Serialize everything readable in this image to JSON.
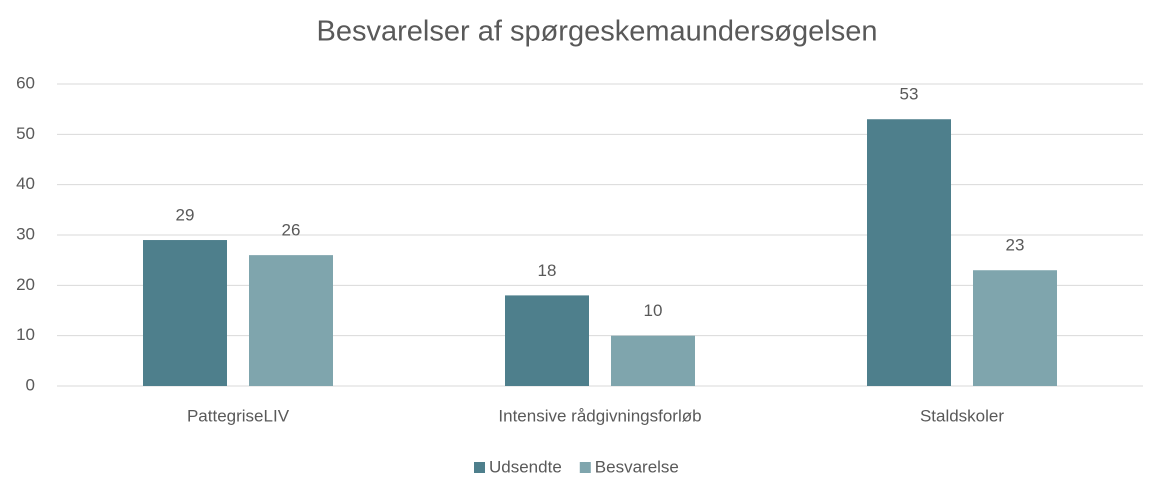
{
  "chart_data": {
    "type": "bar",
    "title": "Besvarelser af spørgeskemaundersøgelsen",
    "categories": [
      "PattegriseLIV",
      "Intensive rådgivningsforløb",
      "Staldskoler"
    ],
    "series": [
      {
        "name": "Udsendte",
        "color": "#4e7f8c",
        "values": [
          29,
          18,
          53
        ]
      },
      {
        "name": "Besvarelse",
        "color": "#7fa5ad",
        "values": [
          26,
          10,
          23
        ]
      }
    ],
    "ylim": [
      0,
      60
    ],
    "yticks": [
      0,
      10,
      20,
      30,
      40,
      50,
      60
    ],
    "grid": true,
    "legend": "bottom"
  }
}
